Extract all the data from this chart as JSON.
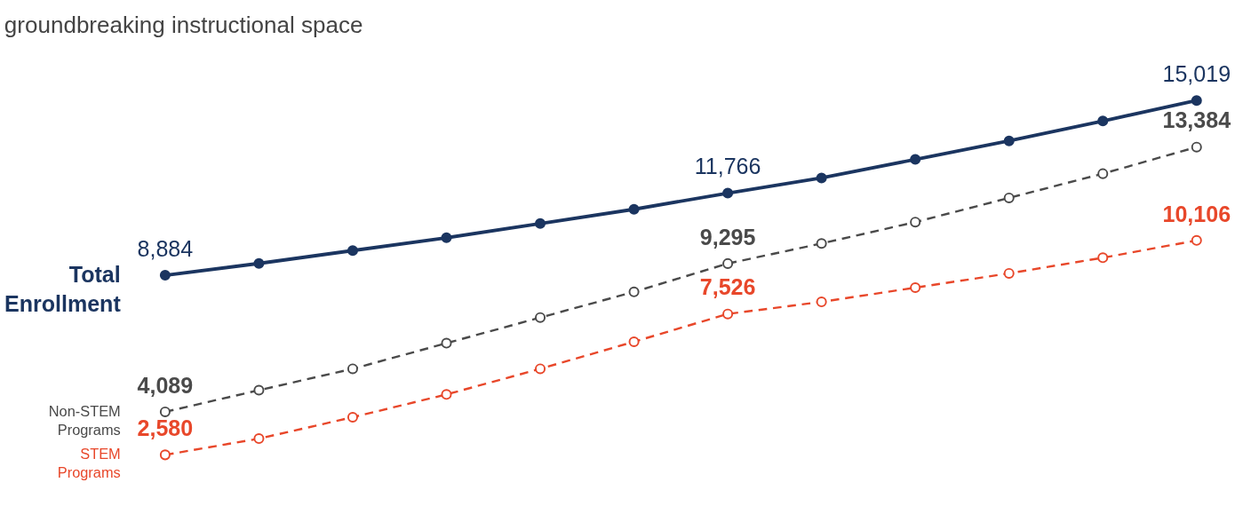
{
  "chart_data": {
    "type": "line",
    "title": "groundbreaking instructional space",
    "categories": [
      null,
      null,
      null,
      null,
      null,
      null,
      null,
      null,
      null,
      null,
      null,
      null
    ],
    "tick_labels": false,
    "legend": false,
    "marker": "circle",
    "series": [
      {
        "name": "Total Enrollment",
        "color": "#1b3560",
        "line_style": "solid",
        "values": [
          8884,
          9300,
          9750,
          10200,
          10700,
          11200,
          11766,
          12300,
          12950,
          13600,
          14300,
          15019
        ],
        "value_labels": [
          "8,884",
          null,
          null,
          null,
          null,
          null,
          "11,766",
          null,
          null,
          null,
          null,
          "15,019"
        ]
      },
      {
        "name": "Non-STEM Programs",
        "color": "#4a4a4a",
        "line_style": "dashed",
        "values": [
          4089,
          4850,
          5600,
          6500,
          7400,
          8300,
          9295,
          10000,
          10750,
          11600,
          12450,
          13384
        ],
        "value_labels": [
          "4,089",
          null,
          null,
          null,
          null,
          null,
          "9,295",
          null,
          null,
          null,
          null,
          "13,384"
        ]
      },
      {
        "name": "STEM Programs",
        "color": "#e8472a",
        "line_style": "dashed",
        "values": [
          2580,
          3150,
          3900,
          4700,
          5600,
          6550,
          7526,
          7950,
          8450,
          8950,
          9500,
          10106
        ],
        "value_labels": [
          "2,580",
          null,
          null,
          null,
          null,
          null,
          "7,526",
          null,
          null,
          null,
          null,
          "10,106"
        ]
      }
    ]
  }
}
